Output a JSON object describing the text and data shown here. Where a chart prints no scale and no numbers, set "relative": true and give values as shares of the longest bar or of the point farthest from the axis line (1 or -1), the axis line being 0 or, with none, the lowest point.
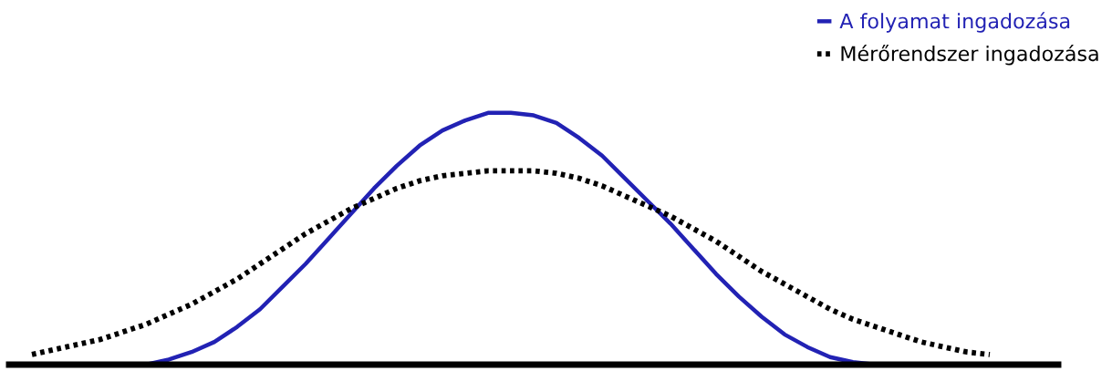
{
  "chart_data": {
    "type": "line",
    "relative": true,
    "legend": "top right",
    "categories": [
      null,
      null,
      null,
      null,
      null,
      null,
      null,
      null,
      null,
      null,
      null,
      null,
      null,
      null,
      null,
      null,
      null,
      null,
      null,
      null,
      null,
      null,
      null,
      null,
      null,
      null,
      null,
      null,
      null,
      null,
      null,
      null,
      null,
      null,
      null,
      null,
      null,
      null,
      null,
      null,
      null,
      null,
      null,
      null,
      null,
      null,
      null
    ],
    "series": [
      {
        "name": "A folyamat ingadozása",
        "color": "#2222b4",
        "line_style": "solid",
        "values": [
          null,
          null,
          null,
          null,
          null,
          null,
          0.0,
          0.02,
          0.05,
          0.09,
          0.15,
          0.22,
          0.31,
          0.4,
          0.5,
          0.6,
          0.7,
          0.79,
          0.87,
          0.93,
          0.97,
          1.0,
          1.0,
          0.99,
          0.96,
          0.9,
          0.83,
          0.74,
          0.65,
          0.56,
          0.46,
          0.36,
          0.27,
          0.19,
          0.12,
          0.07,
          0.03,
          0.01,
          0.0,
          null,
          null,
          null,
          null,
          null,
          null,
          null,
          null
        ]
      },
      {
        "name": "Mérőrendszer ingadozása",
        "color": "#000000",
        "line_style": "dotted",
        "values": [
          null,
          0.04,
          0.06,
          0.08,
          0.1,
          0.13,
          0.16,
          0.2,
          0.24,
          0.29,
          0.34,
          0.4,
          0.46,
          0.52,
          0.57,
          0.62,
          0.66,
          0.7,
          0.73,
          0.75,
          0.76,
          0.77,
          0.77,
          0.77,
          0.76,
          0.74,
          0.71,
          0.67,
          0.63,
          0.59,
          0.54,
          0.49,
          0.43,
          0.37,
          0.32,
          0.27,
          0.22,
          0.18,
          0.15,
          0.12,
          0.09,
          0.07,
          0.05,
          0.04,
          null,
          null,
          null
        ]
      }
    ]
  }
}
